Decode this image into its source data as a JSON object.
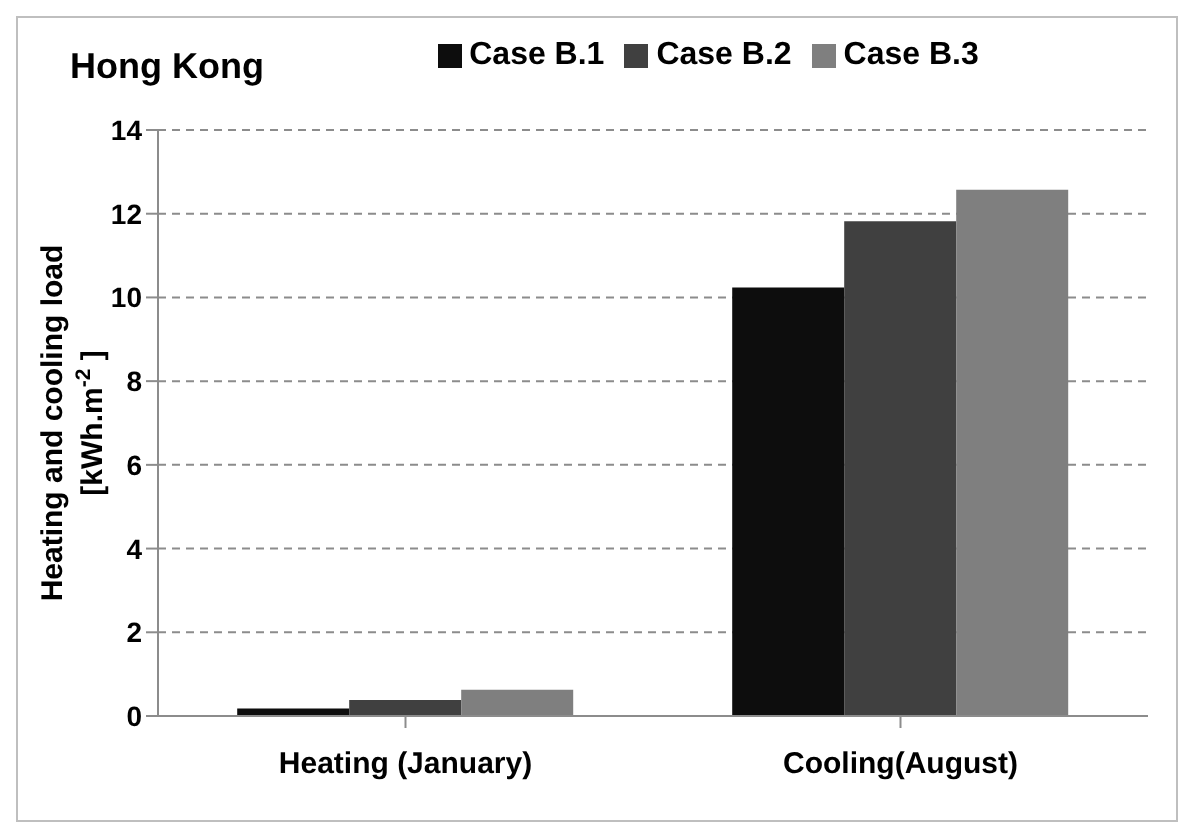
{
  "chart_data": {
    "type": "bar",
    "title": "Hong Kong",
    "ylabel": "Heating and cooling load\n[kWh.m$^{-2}$ ]",
    "categories": [
      "Heating (January)",
      "Cooling(August)"
    ],
    "series": [
      {
        "name": "Case B.1",
        "color": "#0d0d0d",
        "values": [
          0.18,
          10.24
        ]
      },
      {
        "name": "Case B.2",
        "color": "#404040",
        "values": [
          0.38,
          11.82
        ]
      },
      {
        "name": "Case B.3",
        "color": "#7f7f7f",
        "values": [
          0.63,
          12.57
        ]
      }
    ],
    "ylim": [
      0,
      14
    ],
    "yticks": [
      0,
      2,
      4,
      6,
      8,
      10,
      12,
      14
    ],
    "grid": "y",
    "legend": "top"
  }
}
